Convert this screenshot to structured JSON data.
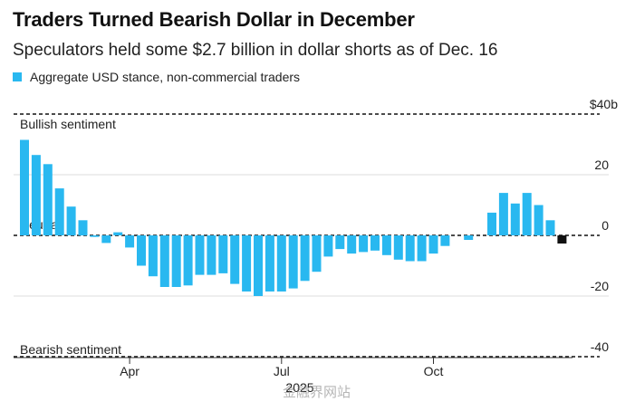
{
  "chart_data": {
    "type": "bar",
    "title": "Traders Turned Bearish Dollar in December",
    "subtitle": "Speculators held some $2.7 billion in dollar shorts as of Dec. 16",
    "legend": "Aggregate USD stance, non-commercial traders",
    "y_unit_label": "$40b",
    "yticks": [
      20,
      0,
      -20,
      -40
    ],
    "ylim": [
      -42,
      42
    ],
    "xlabel": "2025",
    "annotations": {
      "bullish": "Bullish sentiment",
      "neutral": "Neutral",
      "bearish": "Bearish sentiment"
    },
    "x_ticks": [
      {
        "label": "Apr",
        "week_index": 9
      },
      {
        "label": "Jul",
        "week_index": 22
      },
      {
        "label": "Oct",
        "week_index": 35
      }
    ],
    "values": [
      31.5,
      26.5,
      23.5,
      15.5,
      9.5,
      5,
      -0.5,
      -2.5,
      1,
      -4,
      -10,
      -13.5,
      -17,
      -17,
      -16.5,
      -13,
      -13,
      -12.5,
      -16,
      -18.5,
      -20,
      -18.5,
      -18.5,
      -17.5,
      -15,
      -12,
      -7,
      -4.5,
      -6,
      -5.5,
      -5,
      -6.5,
      -8,
      -8.5,
      -8.5,
      -6,
      -3.5,
      null,
      -1.5,
      null,
      7.5,
      14,
      10.5,
      14,
      10,
      5,
      -2.7
    ],
    "series_color": "#29b8f0",
    "latest_color": "#111111"
  },
  "watermark": "金融界网站"
}
